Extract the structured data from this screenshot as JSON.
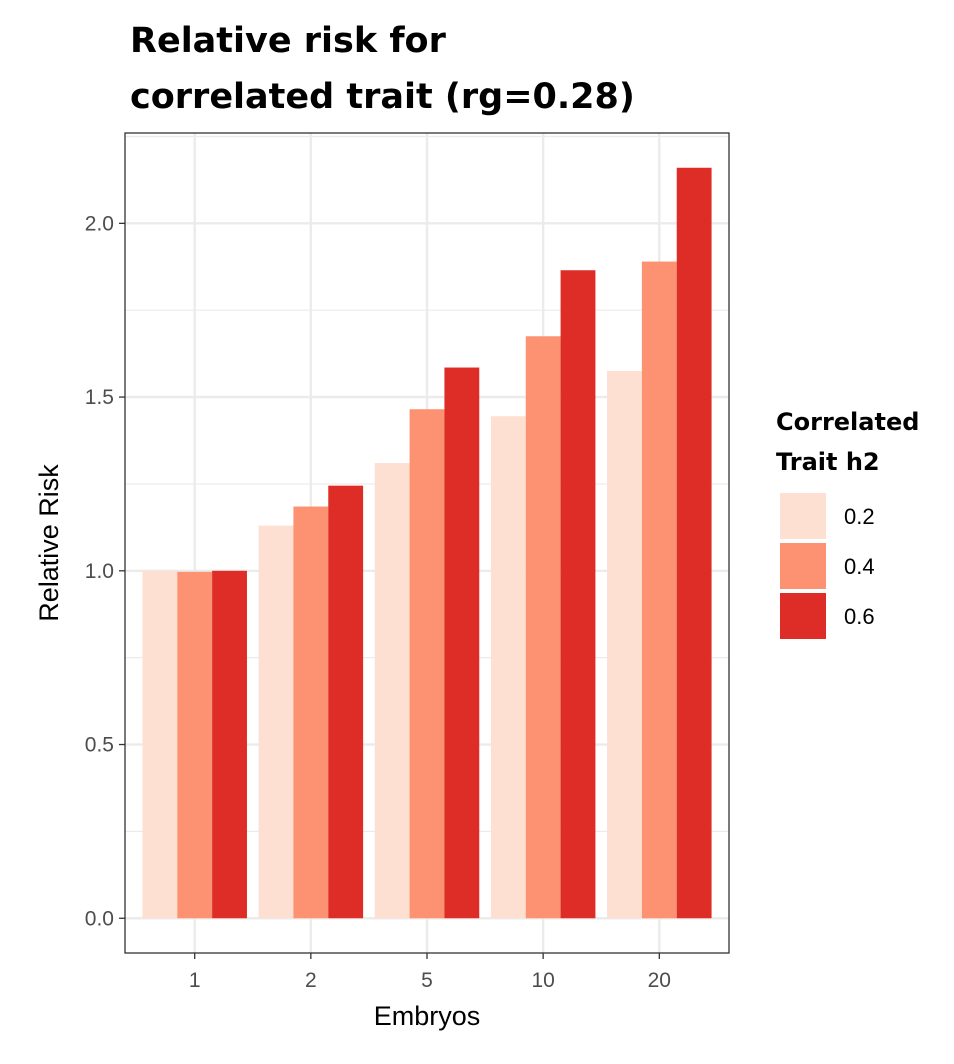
{
  "chart_data": {
    "type": "bar",
    "title_lines": [
      "Relative risk for",
      "correlated trait (rg=0.28)"
    ],
    "xlabel": "Embryos",
    "ylabel": "Relative Risk",
    "categories": [
      "1",
      "2",
      "5",
      "10",
      "20"
    ],
    "series": [
      {
        "name": "0.2",
        "color": "#fee0d2",
        "values": [
          1.0,
          1.13,
          1.31,
          1.445,
          1.575
        ]
      },
      {
        "name": "0.4",
        "color": "#fc9272",
        "values": [
          0.997,
          1.185,
          1.465,
          1.675,
          1.89
        ]
      },
      {
        "name": "0.6",
        "color": "#de2d26",
        "values": [
          1.0,
          1.245,
          1.585,
          1.865,
          2.16
        ]
      }
    ],
    "ylim": [
      -0.1,
      2.26
    ],
    "yticks": [
      0.0,
      0.5,
      1.0,
      1.5,
      2.0
    ],
    "ytick_labels": [
      "0.0",
      "0.5",
      "1.0",
      "1.5",
      "2.0"
    ],
    "grid": true,
    "legend": {
      "title_lines": [
        "Correlated",
        "Trait h2"
      ],
      "position": "right"
    }
  }
}
